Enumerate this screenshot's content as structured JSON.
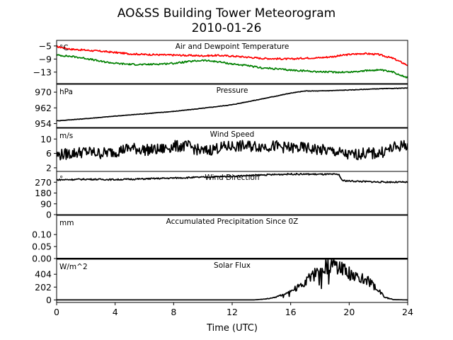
{
  "title_line1": "AO&SS Building Tower Meteorogram",
  "title_line2": "2010-01-26",
  "chart_data": {
    "type": "line",
    "title": "AO&SS Building Tower Meteorogram 2010-01-26",
    "xlabel": "Time (UTC)",
    "x_ticks": [
      "0",
      "4",
      "8",
      "12",
      "16",
      "20",
      "24"
    ],
    "xlim": [
      0,
      24
    ],
    "panels": [
      {
        "title": "Air and Dewpoint Temperature",
        "unit": "°C",
        "ylim": [
          -16.5,
          -3.3
        ],
        "y_ticks": [
          -5,
          -9,
          -13
        ],
        "y_tick_labels": [
          "−5",
          "−9",
          "−13"
        ],
        "series": [
          {
            "color": "#ff0000",
            "x": [
              0,
              1,
              2,
              3,
              4,
              5,
              6,
              7,
              8,
              9,
              10,
              11,
              12,
              13,
              14,
              15,
              16,
              17,
              18,
              19,
              20,
              21,
              22,
              23,
              24
            ],
            "y": [
              -5.2,
              -6.0,
              -6.3,
              -6.6,
              -7.0,
              -7.4,
              -7.6,
              -7.7,
              -7.8,
              -7.9,
              -8.0,
              -7.9,
              -8.1,
              -8.4,
              -8.8,
              -8.9,
              -9.0,
              -8.7,
              -8.6,
              -8.2,
              -7.6,
              -7.3,
              -7.6,
              -8.8,
              -10.9
            ]
          },
          {
            "color": "#008000",
            "x": [
              0,
              1,
              2,
              3,
              4,
              5,
              6,
              7,
              8,
              9,
              10,
              11,
              12,
              13,
              14,
              15,
              16,
              17,
              18,
              19,
              20,
              21,
              22,
              23,
              24
            ],
            "y": [
              -7.8,
              -8.2,
              -8.8,
              -9.7,
              -10.3,
              -10.6,
              -10.7,
              -10.5,
              -10.3,
              -9.8,
              -9.4,
              -9.8,
              -10.5,
              -11.0,
              -11.7,
              -12.0,
              -12.4,
              -12.6,
              -12.9,
              -13.0,
              -13.0,
              -12.6,
              -12.3,
              -13.0,
              -14.7
            ]
          }
        ]
      },
      {
        "title": "Pressure",
        "unit": "hPa",
        "ylim": [
          952,
          974
        ],
        "y_ticks": [
          970,
          962,
          954
        ],
        "y_tick_labels": [
          "970",
          "962",
          "954"
        ],
        "series": [
          {
            "color": "#000000",
            "x": [
              0,
              2,
              4,
              6,
              8,
              10,
              12,
              14,
              16,
              17,
              18,
              20,
              22,
              24
            ],
            "y": [
              955.4,
              956.5,
              957.8,
              959.0,
              960.2,
              961.8,
              963.6,
              966.5,
              969.5,
              970.6,
              970.6,
              971.1,
              971.7,
              972.1
            ]
          }
        ]
      },
      {
        "title": "Wind Speed",
        "unit": "m/s",
        "ylim": [
          1,
          13
        ],
        "y_ticks": [
          10,
          6,
          2
        ],
        "y_tick_labels": [
          "10",
          "6",
          "2"
        ],
        "series": [
          {
            "color": "#000000",
            "x": [
              0,
              1,
              2,
              3,
              4,
              5,
              6,
              7,
              8,
              9,
              10,
              11,
              12,
              13,
              14,
              15,
              16,
              17,
              18,
              19,
              20,
              21,
              22,
              23,
              24
            ],
            "y": [
              5.5,
              6.0,
              6.5,
              6.0,
              6.5,
              7.5,
              7.0,
              7.0,
              8.0,
              8.0,
              6.5,
              7.5,
              8.0,
              8.0,
              8.0,
              8.0,
              7.5,
              7.5,
              7.0,
              6.5,
              5.5,
              6.0,
              6.0,
              7.5,
              8.5
            ]
          }
        ]
      },
      {
        "title": "Wind Direction",
        "unit": "°",
        "ylim": [
          0,
          360
        ],
        "y_ticks": [
          270,
          180,
          90,
          0
        ],
        "y_tick_labels": [
          "270",
          "180",
          "90",
          "0"
        ],
        "series": [
          {
            "color": "#000000",
            "x": [
              0,
              2,
              4,
              6,
              8,
              10,
              12,
              14,
              16,
              18,
              19.3,
              19.5,
              20,
              22,
              24
            ],
            "y": [
              290,
              295,
              292,
              298,
              305,
              312,
              320,
              330,
              338,
              336,
              335,
              285,
              280,
              272,
              270
            ]
          }
        ]
      },
      {
        "title": "Accumulated Precipitation Since 0Z",
        "unit": "mm",
        "ylim": [
          0,
          0.18
        ],
        "y_ticks": [
          0.1,
          0.05,
          0.0
        ],
        "y_tick_labels": [
          "0.10",
          "0.05",
          "0.00"
        ],
        "series": [
          {
            "color": "#000000",
            "x": [
              0,
              24
            ],
            "y": [
              0.0,
              0.0
            ]
          }
        ]
      },
      {
        "title": "Solar Flux",
        "unit": "W/m^2",
        "ylim": [
          -40,
          640
        ],
        "y_ticks": [
          404,
          202,
          0
        ],
        "y_tick_labels": [
          "404",
          "202",
          "0"
        ],
        "series": [
          {
            "color": "#000000",
            "x": [
              0,
              13.5,
              14.5,
              15.5,
              16.5,
              17.2,
              17.8,
              18.2,
              18.6,
              19.2,
              19.8,
              20.5,
              21.2,
              21.8,
              22.4,
              23,
              24
            ],
            "y": [
              0,
              0,
              20,
              80,
              200,
              320,
              450,
              560,
              530,
              520,
              470,
              360,
              320,
              200,
              50,
              5,
              0
            ]
          }
        ]
      }
    ]
  }
}
